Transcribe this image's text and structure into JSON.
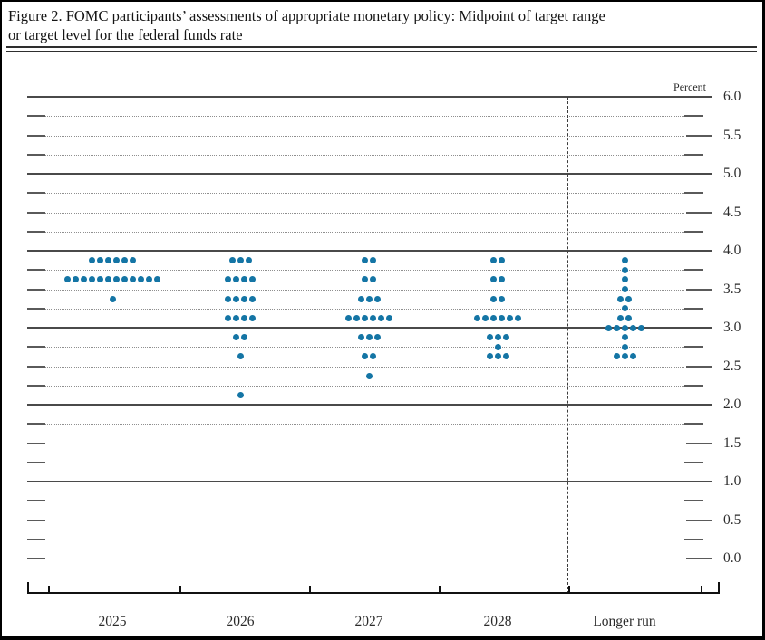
{
  "figure": {
    "title_line1": "Figure 2. FOMC participants’ assessments of appropriate monetary policy: Midpoint of target range",
    "title_line2": "or target level for the federal funds rate"
  },
  "chart_data": {
    "type": "scatter",
    "subtype": "fomc-dot-plot",
    "title": "Figure 2. FOMC participants’ assessments of appropriate monetary policy: Midpoint of target range or target level for the federal funds rate",
    "unit_label": "Percent",
    "y_axis": {
      "min": 0.0,
      "max": 6.0,
      "minor_grid_step": 0.25,
      "label_step": 0.5,
      "solid_gridlines": [
        6.0,
        5.0,
        4.0,
        3.0,
        2.0,
        1.0
      ],
      "tick_labels": [
        "6.0",
        "5.5",
        "5.0",
        "4.5",
        "4.0",
        "3.5",
        "3.0",
        "2.5",
        "2.0",
        "1.5",
        "1.0",
        "0.5",
        "0.0"
      ]
    },
    "categories": [
      "2025",
      "2026",
      "2027",
      "2028",
      "Longer run"
    ],
    "series": [
      {
        "category": "2025",
        "points": [
          {
            "rate": 3.875,
            "count": 6
          },
          {
            "rate": 3.625,
            "count": 12
          },
          {
            "rate": 3.375,
            "count": 1
          }
        ]
      },
      {
        "category": "2026",
        "points": [
          {
            "rate": 3.875,
            "count": 3
          },
          {
            "rate": 3.625,
            "count": 4
          },
          {
            "rate": 3.375,
            "count": 4
          },
          {
            "rate": 3.125,
            "count": 4
          },
          {
            "rate": 2.875,
            "count": 2
          },
          {
            "rate": 2.625,
            "count": 1
          },
          {
            "rate": 2.125,
            "count": 1
          }
        ]
      },
      {
        "category": "2027",
        "points": [
          {
            "rate": 3.875,
            "count": 2
          },
          {
            "rate": 3.625,
            "count": 2
          },
          {
            "rate": 3.375,
            "count": 3
          },
          {
            "rate": 3.125,
            "count": 6
          },
          {
            "rate": 2.875,
            "count": 3
          },
          {
            "rate": 2.625,
            "count": 2
          },
          {
            "rate": 2.375,
            "count": 1
          }
        ]
      },
      {
        "category": "2028",
        "points": [
          {
            "rate": 3.875,
            "count": 2
          },
          {
            "rate": 3.625,
            "count": 2
          },
          {
            "rate": 3.375,
            "count": 2
          },
          {
            "rate": 3.125,
            "count": 6
          },
          {
            "rate": 2.875,
            "count": 3
          },
          {
            "rate": 2.75,
            "count": 1
          },
          {
            "rate": 2.625,
            "count": 3
          }
        ]
      },
      {
        "category": "Longer run",
        "points": [
          {
            "rate": 3.875,
            "count": 1
          },
          {
            "rate": 3.75,
            "count": 1
          },
          {
            "rate": 3.625,
            "count": 1
          },
          {
            "rate": 3.5,
            "count": 1
          },
          {
            "rate": 3.375,
            "count": 2
          },
          {
            "rate": 3.25,
            "count": 1
          },
          {
            "rate": 3.125,
            "count": 2
          },
          {
            "rate": 3.0,
            "count": 5
          },
          {
            "rate": 2.875,
            "count": 1
          },
          {
            "rate": 2.75,
            "count": 1
          },
          {
            "rate": 2.625,
            "count": 3
          }
        ]
      }
    ],
    "dots_per_column": 19,
    "dot_color": "#1475a5"
  }
}
